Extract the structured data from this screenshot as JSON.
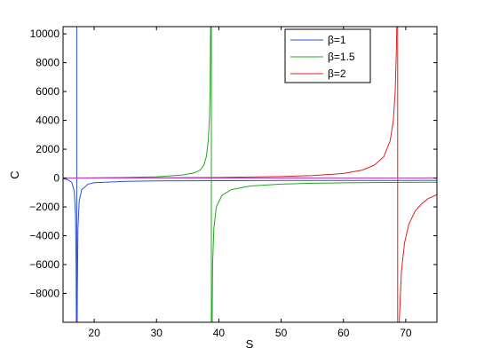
{
  "chart_data": {
    "type": "line",
    "title": "",
    "xlabel": "S",
    "ylabel": "C",
    "xlim": [
      15,
      75
    ],
    "ylim": [
      -10000,
      10500
    ],
    "xticks": [
      20,
      30,
      40,
      50,
      60,
      70
    ],
    "yticks": [
      -8000,
      -6000,
      -4000,
      -2000,
      0,
      2000,
      4000,
      6000,
      8000,
      10000
    ],
    "grid": false,
    "legend_position": "top-right",
    "series": [
      {
        "name": "β=1",
        "color": "#2a4fe0",
        "pole": 17.2,
        "segments": [
          [
            [
              15.0,
              -40
            ],
            [
              15.8,
              -120
            ],
            [
              16.4,
              -300
            ],
            [
              16.8,
              -900
            ],
            [
              17.0,
              -2500
            ],
            [
              17.1,
              -6000
            ],
            [
              17.15,
              -12000
            ]
          ],
          [
            [
              17.25,
              -12000
            ],
            [
              17.3,
              -8000
            ],
            [
              17.4,
              -3500
            ],
            [
              17.6,
              -1600
            ],
            [
              18.0,
              -800
            ],
            [
              19.0,
              -420
            ],
            [
              20.0,
              -320
            ],
            [
              25.0,
              -230
            ],
            [
              30.0,
              -200
            ],
            [
              40.0,
              -180
            ],
            [
              50.0,
              -170
            ],
            [
              60.0,
              -165
            ],
            [
              70.0,
              -160
            ],
            [
              75.0,
              -158
            ]
          ]
        ]
      },
      {
        "name": "β=1.5",
        "color": "#1fa81f",
        "pole": 38.8,
        "segments": [
          [
            [
              15.0,
              5
            ],
            [
              20.0,
              15
            ],
            [
              25.0,
              40
            ],
            [
              30.0,
              90
            ],
            [
              34.0,
              200
            ],
            [
              36.0,
              350
            ],
            [
              37.0,
              550
            ],
            [
              37.6,
              900
            ],
            [
              38.0,
              1500
            ],
            [
              38.3,
              2600
            ],
            [
              38.5,
              4200
            ],
            [
              38.6,
              6000
            ],
            [
              38.7,
              12000
            ]
          ],
          [
            [
              38.9,
              -12000
            ],
            [
              39.0,
              -6000
            ],
            [
              39.2,
              -3500
            ],
            [
              39.6,
              -2000
            ],
            [
              40.5,
              -1200
            ],
            [
              42.0,
              -800
            ],
            [
              45.0,
              -550
            ],
            [
              50.0,
              -420
            ],
            [
              55.0,
              -360
            ],
            [
              60.0,
              -330
            ],
            [
              70.0,
              -300
            ],
            [
              75.0,
              -290
            ]
          ]
        ]
      },
      {
        "name": "β=2",
        "color": "#e02020",
        "pole": 68.7,
        "segments": [
          [
            [
              15.0,
              0
            ],
            [
              20.0,
              5
            ],
            [
              30.0,
              20
            ],
            [
              40.0,
              40
            ],
            [
              50.0,
              100
            ],
            [
              55.0,
              170
            ],
            [
              60.0,
              320
            ],
            [
              63.0,
              550
            ],
            [
              65.0,
              900
            ],
            [
              66.5,
              1500
            ],
            [
              67.5,
              2600
            ],
            [
              68.0,
              4000
            ],
            [
              68.3,
              6000
            ],
            [
              68.5,
              9000
            ],
            [
              68.6,
              12000
            ]
          ],
          [
            [
              68.8,
              -12000
            ],
            [
              69.0,
              -9500
            ],
            [
              69.3,
              -6500
            ],
            [
              69.8,
              -4500
            ],
            [
              70.5,
              -3200
            ],
            [
              71.5,
              -2300
            ],
            [
              72.5,
              -1800
            ],
            [
              73.5,
              -1450
            ],
            [
              75.0,
              -1150
            ]
          ]
        ]
      }
    ]
  }
}
